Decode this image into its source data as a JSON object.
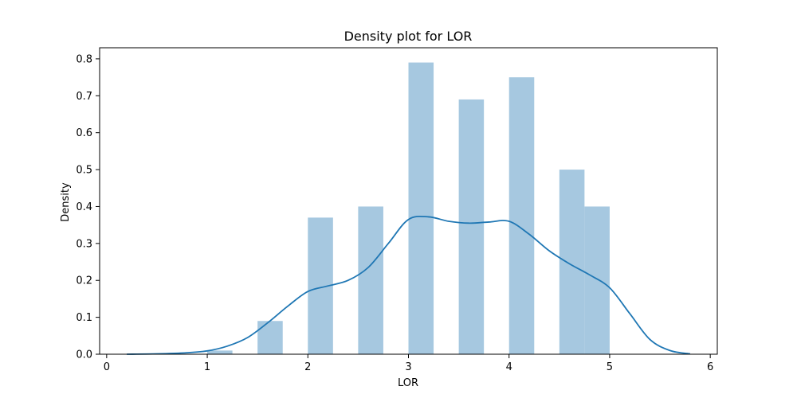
{
  "chart_data": {
    "type": "bar",
    "title": "Density plot for LOR",
    "xlabel": "LOR",
    "ylabel": "Density",
    "xlim": [
      -0.07,
      6.07
    ],
    "ylim": [
      0,
      0.83
    ],
    "xticks": [
      0,
      1,
      2,
      3,
      4,
      5,
      6
    ],
    "yticks": [
      0.0,
      0.1,
      0.2,
      0.3,
      0.4,
      0.5,
      0.6,
      0.7,
      0.8
    ],
    "xtick_labels": [
      "0",
      "1",
      "2",
      "3",
      "4",
      "5",
      "6"
    ],
    "ytick_labels": [
      "0.0",
      "0.1",
      "0.2",
      "0.3",
      "0.4",
      "0.5",
      "0.6",
      "0.7",
      "0.8"
    ],
    "grid": false,
    "histogram": {
      "color": "#a6c8e0",
      "bins": [
        {
          "x0": 1.0,
          "x1": 1.25,
          "density": 0.01
        },
        {
          "x0": 1.25,
          "x1": 1.5,
          "density": 0.0
        },
        {
          "x0": 1.5,
          "x1": 1.75,
          "density": 0.09
        },
        {
          "x0": 1.75,
          "x1": 2.0,
          "density": 0.0
        },
        {
          "x0": 2.0,
          "x1": 2.25,
          "density": 0.37
        },
        {
          "x0": 2.25,
          "x1": 2.5,
          "density": 0.0
        },
        {
          "x0": 2.5,
          "x1": 2.75,
          "density": 0.4
        },
        {
          "x0": 2.75,
          "x1": 3.0,
          "density": 0.0
        },
        {
          "x0": 3.0,
          "x1": 3.25,
          "density": 0.79
        },
        {
          "x0": 3.25,
          "x1": 3.5,
          "density": 0.0
        },
        {
          "x0": 3.5,
          "x1": 3.75,
          "density": 0.69
        },
        {
          "x0": 3.75,
          "x1": 4.0,
          "density": 0.0
        },
        {
          "x0": 4.0,
          "x1": 4.25,
          "density": 0.75
        },
        {
          "x0": 4.25,
          "x1": 4.5,
          "density": 0.0
        },
        {
          "x0": 4.5,
          "x1": 4.75,
          "density": 0.5
        },
        {
          "x0": 4.75,
          "x1": 5.0,
          "density": 0.4
        }
      ]
    },
    "kde": {
      "color": "#1f77b4",
      "x": [
        0.2,
        0.5,
        0.8,
        1.0,
        1.2,
        1.4,
        1.6,
        1.8,
        2.0,
        2.2,
        2.4,
        2.6,
        2.8,
        3.0,
        3.2,
        3.4,
        3.6,
        3.8,
        4.0,
        4.2,
        4.4,
        4.6,
        4.8,
        5.0,
        5.2,
        5.4,
        5.6,
        5.8
      ],
      "y": [
        0.0,
        0.001,
        0.004,
        0.009,
        0.022,
        0.045,
        0.085,
        0.13,
        0.17,
        0.185,
        0.2,
        0.235,
        0.3,
        0.365,
        0.372,
        0.36,
        0.355,
        0.358,
        0.36,
        0.325,
        0.28,
        0.245,
        0.215,
        0.18,
        0.11,
        0.04,
        0.01,
        0.001
      ]
    }
  }
}
